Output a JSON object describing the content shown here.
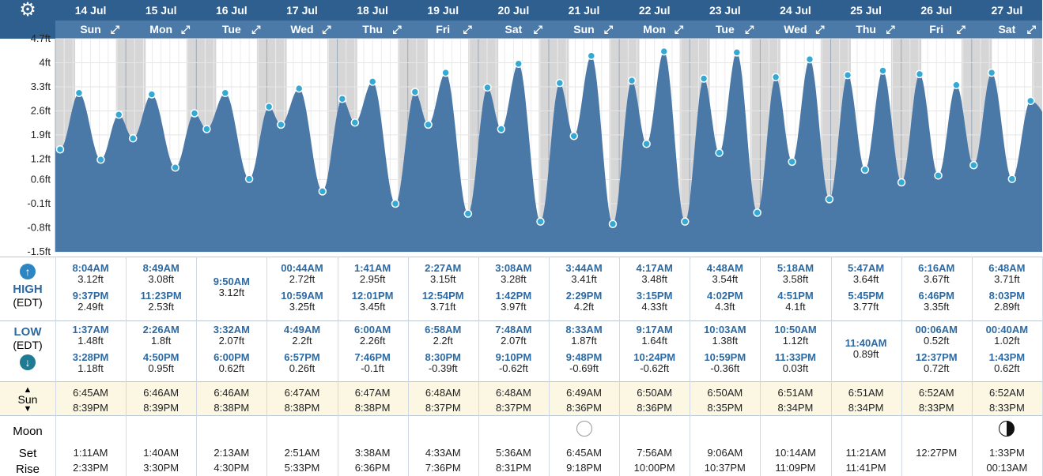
{
  "header": {
    "dates": [
      "14 Jul",
      "15 Jul",
      "16 Jul",
      "17 Jul",
      "18 Jul",
      "19 Jul",
      "20 Jul",
      "21 Jul",
      "22 Jul",
      "23 Jul",
      "24 Jul",
      "25 Jul",
      "26 Jul",
      "27 Jul"
    ],
    "days": [
      "Sun",
      "Mon",
      "Tue",
      "Wed",
      "Thu",
      "Fri",
      "Sat",
      "Sun",
      "Mon",
      "Tue",
      "Wed",
      "Thu",
      "Fri",
      "Sat"
    ],
    "settings_icon": "gear-icon",
    "expand_icon": "expand-arrow-icon"
  },
  "colors": {
    "header_dark": "#2f5f8f",
    "header_light": "#4b79a8",
    "tide_fill": "#4a79a8",
    "night": "#d6d6d6",
    "point": "#35a9d3",
    "time_text": "#2d6aa3",
    "sun_row_bg": "#fbf7e3"
  },
  "chart_data": {
    "type": "area",
    "yticks": [
      "4.7ft",
      "4ft",
      "3.3ft",
      "2.6ft",
      "1.9ft",
      "1.2ft",
      "0.6ft",
      "-0.1ft",
      "-0.8ft",
      "-1.5ft"
    ],
    "ylim": [
      -1.5,
      4.7
    ],
    "series": [
      {
        "events": [
          {
            "day": 0,
            "time": "1:37AM",
            "height": 1.48
          },
          {
            "day": 0,
            "time": "8:04AM",
            "height": 3.12
          },
          {
            "day": 0,
            "time": "3:28PM",
            "height": 1.18
          },
          {
            "day": 0,
            "time": "9:37PM",
            "height": 2.49
          },
          {
            "day": 1,
            "time": "2:26AM",
            "height": 1.8
          },
          {
            "day": 1,
            "time": "8:49AM",
            "height": 3.08
          },
          {
            "day": 1,
            "time": "4:50PM",
            "height": 0.95
          },
          {
            "day": 1,
            "time": "11:23PM",
            "height": 2.53
          },
          {
            "day": 2,
            "time": "3:32AM",
            "height": 2.07
          },
          {
            "day": 2,
            "time": "9:50AM",
            "height": 3.12
          },
          {
            "day": 2,
            "time": "6:00PM",
            "height": 0.62
          },
          {
            "day": 3,
            "time": "00:44AM",
            "height": 2.72
          },
          {
            "day": 3,
            "time": "4:49AM",
            "height": 2.2
          },
          {
            "day": 3,
            "time": "10:59AM",
            "height": 3.25
          },
          {
            "day": 3,
            "time": "6:57PM",
            "height": 0.26
          },
          {
            "day": 4,
            "time": "1:41AM",
            "height": 2.95
          },
          {
            "day": 4,
            "time": "6:00AM",
            "height": 2.26
          },
          {
            "day": 4,
            "time": "12:01PM",
            "height": 3.45
          },
          {
            "day": 4,
            "time": "7:46PM",
            "height": -0.1
          },
          {
            "day": 5,
            "time": "2:27AM",
            "height": 3.15
          },
          {
            "day": 5,
            "time": "6:58AM",
            "height": 2.2
          },
          {
            "day": 5,
            "time": "12:54PM",
            "height": 3.71
          },
          {
            "day": 5,
            "time": "8:30PM",
            "height": -0.39
          },
          {
            "day": 6,
            "time": "3:08AM",
            "height": 3.28
          },
          {
            "day": 6,
            "time": "7:48AM",
            "height": 2.07
          },
          {
            "day": 6,
            "time": "1:42PM",
            "height": 3.97
          },
          {
            "day": 6,
            "time": "9:10PM",
            "height": -0.62
          },
          {
            "day": 7,
            "time": "3:44AM",
            "height": 3.41
          },
          {
            "day": 7,
            "time": "8:33AM",
            "height": 1.87
          },
          {
            "day": 7,
            "time": "2:29PM",
            "height": 4.2
          },
          {
            "day": 7,
            "time": "9:48PM",
            "height": -0.69
          },
          {
            "day": 8,
            "time": "4:17AM",
            "height": 3.48
          },
          {
            "day": 8,
            "time": "9:17AM",
            "height": 1.64
          },
          {
            "day": 8,
            "time": "3:15PM",
            "height": 4.33
          },
          {
            "day": 8,
            "time": "10:24PM",
            "height": -0.62
          },
          {
            "day": 9,
            "time": "4:48AM",
            "height": 3.54
          },
          {
            "day": 9,
            "time": "10:03AM",
            "height": 1.38
          },
          {
            "day": 9,
            "time": "4:02PM",
            "height": 4.3
          },
          {
            "day": 9,
            "time": "10:59PM",
            "height": -0.36
          },
          {
            "day": 10,
            "time": "5:18AM",
            "height": 3.58
          },
          {
            "day": 10,
            "time": "10:50AM",
            "height": 1.12
          },
          {
            "day": 10,
            "time": "4:51PM",
            "height": 4.1
          },
          {
            "day": 10,
            "time": "11:33PM",
            "height": 0.03
          },
          {
            "day": 11,
            "time": "5:47AM",
            "height": 3.64
          },
          {
            "day": 11,
            "time": "11:40AM",
            "height": 0.89
          },
          {
            "day": 11,
            "time": "5:45PM",
            "height": 3.77
          },
          {
            "day": 12,
            "time": "00:06AM",
            "height": 0.52
          },
          {
            "day": 12,
            "time": "6:16AM",
            "height": 3.67
          },
          {
            "day": 12,
            "time": "12:37PM",
            "height": 0.72
          },
          {
            "day": 12,
            "time": "6:46PM",
            "height": 3.35
          },
          {
            "day": 13,
            "time": "00:40AM",
            "height": 1.02
          },
          {
            "day": 13,
            "time": "6:48AM",
            "height": 3.71
          },
          {
            "day": 13,
            "time": "1:43PM",
            "height": 0.62
          },
          {
            "day": 13,
            "time": "8:03PM",
            "height": 2.89
          }
        ]
      }
    ]
  },
  "tide_table": {
    "high_label": "HIGH",
    "low_label": "LOW",
    "zone_label": "(EDT)",
    "high": [
      [
        {
          "t": "8:04AM",
          "h": "3.12ft"
        },
        {
          "t": "9:37PM",
          "h": "2.49ft"
        }
      ],
      [
        {
          "t": "8:49AM",
          "h": "3.08ft"
        },
        {
          "t": "11:23PM",
          "h": "2.53ft"
        }
      ],
      [
        {
          "t": "9:50AM",
          "h": "3.12ft"
        }
      ],
      [
        {
          "t": "00:44AM",
          "h": "2.72ft"
        },
        {
          "t": "10:59AM",
          "h": "3.25ft"
        }
      ],
      [
        {
          "t": "1:41AM",
          "h": "2.95ft"
        },
        {
          "t": "12:01PM",
          "h": "3.45ft"
        }
      ],
      [
        {
          "t": "2:27AM",
          "h": "3.15ft"
        },
        {
          "t": "12:54PM",
          "h": "3.71ft"
        }
      ],
      [
        {
          "t": "3:08AM",
          "h": "3.28ft"
        },
        {
          "t": "1:42PM",
          "h": "3.97ft"
        }
      ],
      [
        {
          "t": "3:44AM",
          "h": "3.41ft"
        },
        {
          "t": "2:29PM",
          "h": "4.2ft"
        }
      ],
      [
        {
          "t": "4:17AM",
          "h": "3.48ft"
        },
        {
          "t": "3:15PM",
          "h": "4.33ft"
        }
      ],
      [
        {
          "t": "4:48AM",
          "h": "3.54ft"
        },
        {
          "t": "4:02PM",
          "h": "4.3ft"
        }
      ],
      [
        {
          "t": "5:18AM",
          "h": "3.58ft"
        },
        {
          "t": "4:51PM",
          "h": "4.1ft"
        }
      ],
      [
        {
          "t": "5:47AM",
          "h": "3.64ft"
        },
        {
          "t": "5:45PM",
          "h": "3.77ft"
        }
      ],
      [
        {
          "t": "6:16AM",
          "h": "3.67ft"
        },
        {
          "t": "6:46PM",
          "h": "3.35ft"
        }
      ],
      [
        {
          "t": "6:48AM",
          "h": "3.71ft"
        },
        {
          "t": "8:03PM",
          "h": "2.89ft"
        }
      ]
    ],
    "low": [
      [
        {
          "t": "1:37AM",
          "h": "1.48ft"
        },
        {
          "t": "3:28PM",
          "h": "1.18ft"
        }
      ],
      [
        {
          "t": "2:26AM",
          "h": "1.8ft"
        },
        {
          "t": "4:50PM",
          "h": "0.95ft"
        }
      ],
      [
        {
          "t": "3:32AM",
          "h": "2.07ft"
        },
        {
          "t": "6:00PM",
          "h": "0.62ft"
        }
      ],
      [
        {
          "t": "4:49AM",
          "h": "2.2ft"
        },
        {
          "t": "6:57PM",
          "h": "0.26ft"
        }
      ],
      [
        {
          "t": "6:00AM",
          "h": "2.26ft"
        },
        {
          "t": "7:46PM",
          "h": "-0.1ft"
        }
      ],
      [
        {
          "t": "6:58AM",
          "h": "2.2ft"
        },
        {
          "t": "8:30PM",
          "h": "-0.39ft"
        }
      ],
      [
        {
          "t": "7:48AM",
          "h": "2.07ft"
        },
        {
          "t": "9:10PM",
          "h": "-0.62ft"
        }
      ],
      [
        {
          "t": "8:33AM",
          "h": "1.87ft"
        },
        {
          "t": "9:48PM",
          "h": "-0.69ft"
        }
      ],
      [
        {
          "t": "9:17AM",
          "h": "1.64ft"
        },
        {
          "t": "10:24PM",
          "h": "-0.62ft"
        }
      ],
      [
        {
          "t": "10:03AM",
          "h": "1.38ft"
        },
        {
          "t": "10:59PM",
          "h": "-0.36ft"
        }
      ],
      [
        {
          "t": "10:50AM",
          "h": "1.12ft"
        },
        {
          "t": "11:33PM",
          "h": "0.03ft"
        }
      ],
      [
        {
          "t": "11:40AM",
          "h": "0.89ft"
        }
      ],
      [
        {
          "t": "00:06AM",
          "h": "0.52ft"
        },
        {
          "t": "12:37PM",
          "h": "0.72ft"
        }
      ],
      [
        {
          "t": "00:40AM",
          "h": "1.02ft"
        },
        {
          "t": "1:43PM",
          "h": "0.62ft"
        }
      ]
    ]
  },
  "sun": {
    "label": "Sun",
    "rise": [
      "6:45AM",
      "6:46AM",
      "6:46AM",
      "6:47AM",
      "6:47AM",
      "6:48AM",
      "6:48AM",
      "6:49AM",
      "6:50AM",
      "6:50AM",
      "6:51AM",
      "6:51AM",
      "6:52AM",
      "6:52AM"
    ],
    "set": [
      "8:39PM",
      "8:39PM",
      "8:38PM",
      "8:38PM",
      "8:38PM",
      "8:37PM",
      "8:37PM",
      "8:36PM",
      "8:36PM",
      "8:35PM",
      "8:34PM",
      "8:34PM",
      "8:33PM",
      "8:33PM"
    ]
  },
  "moon": {
    "label": "Moon",
    "set_label": "Set",
    "rise_label": "Rise",
    "phases": [
      null,
      null,
      null,
      null,
      null,
      null,
      null,
      "full-moon-icon",
      null,
      null,
      null,
      null,
      null,
      "last-quarter-moon-icon"
    ],
    "set": [
      "1:11AM",
      "1:40AM",
      "2:13AM",
      "2:51AM",
      "3:38AM",
      "4:33AM",
      "5:36AM",
      "6:45AM",
      "7:56AM",
      "9:06AM",
      "10:14AM",
      "11:21AM",
      "12:27PM",
      "1:33PM"
    ],
    "rise": [
      "2:33PM",
      "3:30PM",
      "4:30PM",
      "5:33PM",
      "6:36PM",
      "7:36PM",
      "8:31PM",
      "9:18PM",
      "10:00PM",
      "10:37PM",
      "11:09PM",
      "11:41PM",
      "",
      "00:13AM"
    ]
  }
}
